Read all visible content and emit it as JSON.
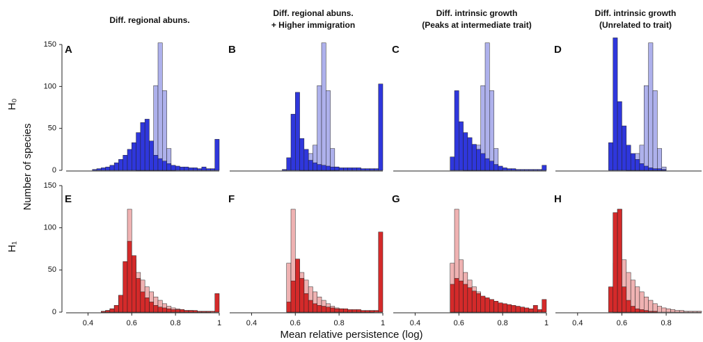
{
  "y_label": "Number of species",
  "x_label": "Mean relative persistence (log)",
  "row_labels": [
    "H₀",
    "H₁"
  ],
  "chart_data": [
    {
      "type": "histogram",
      "panel": "A",
      "title_lines": [
        "Diff. regional abuns."
      ],
      "xlim": [
        0.3,
        1.0
      ],
      "ylim": [
        0,
        160
      ],
      "yticks": [
        0,
        50,
        100,
        150
      ],
      "bins": [
        0.4,
        0.42,
        0.44,
        0.46,
        0.48,
        0.5,
        0.52,
        0.54,
        0.56,
        0.58,
        0.6,
        0.62,
        0.64,
        0.66,
        0.68,
        0.7,
        0.72,
        0.74,
        0.76,
        0.78,
        0.8,
        0.82,
        0.84,
        0.86,
        0.88,
        0.9,
        0.92,
        0.94,
        0.96,
        0.98,
        1.0
      ],
      "series": [
        {
          "color": "#aeb1ec",
          "values": [
            0,
            0,
            0,
            0,
            0,
            0,
            0,
            0,
            0,
            0,
            0,
            2,
            5,
            20,
            30,
            101,
            152,
            95,
            26,
            4,
            0,
            0,
            0,
            0,
            0,
            0,
            0,
            0,
            0,
            0
          ]
        },
        {
          "color": "#2f37dc",
          "values": [
            0,
            1,
            2,
            3,
            4,
            6,
            9,
            13,
            18,
            25,
            33,
            45,
            57,
            61,
            35,
            18,
            14,
            11,
            8,
            6,
            5,
            4,
            4,
            3,
            3,
            2,
            4,
            2,
            2,
            37
          ]
        }
      ]
    },
    {
      "type": "histogram",
      "panel": "B",
      "title_lines": [
        "Diff. regional abuns.",
        "+ Higher immigration"
      ],
      "xlim": [
        0.3,
        1.0
      ],
      "ylim": [
        0,
        160
      ],
      "bins": [
        0.4,
        0.42,
        0.44,
        0.46,
        0.48,
        0.5,
        0.52,
        0.54,
        0.56,
        0.58,
        0.6,
        0.62,
        0.64,
        0.66,
        0.68,
        0.7,
        0.72,
        0.74,
        0.76,
        0.78,
        0.8,
        0.82,
        0.84,
        0.86,
        0.88,
        0.9,
        0.92,
        0.94,
        0.96,
        0.98,
        1.0
      ],
      "series": [
        {
          "color": "#aeb1ec",
          "values": [
            0,
            0,
            0,
            0,
            0,
            0,
            0,
            0,
            0,
            0,
            0,
            2,
            5,
            20,
            30,
            101,
            152,
            95,
            26,
            4,
            0,
            0,
            0,
            0,
            0,
            0,
            0,
            0,
            0,
            0
          ]
        },
        {
          "color": "#2f37dc",
          "values": [
            0,
            0,
            0,
            0,
            0,
            0,
            0,
            1,
            15,
            67,
            93,
            38,
            25,
            12,
            9,
            7,
            6,
            5,
            4,
            4,
            3,
            3,
            3,
            3,
            3,
            2,
            2,
            2,
            2,
            103
          ]
        }
      ]
    },
    {
      "type": "histogram",
      "panel": "C",
      "title_lines": [
        "Diff. intrinsic growth",
        "(Peaks at intermediate trait)"
      ],
      "xlim": [
        0.3,
        1.0
      ],
      "ylim": [
        0,
        160
      ],
      "bins": [
        0.4,
        0.42,
        0.44,
        0.46,
        0.48,
        0.5,
        0.52,
        0.54,
        0.56,
        0.58,
        0.6,
        0.62,
        0.64,
        0.66,
        0.68,
        0.7,
        0.72,
        0.74,
        0.76,
        0.78,
        0.8,
        0.82,
        0.84,
        0.86,
        0.88,
        0.9,
        0.92,
        0.94,
        0.96,
        0.98,
        1.0
      ],
      "series": [
        {
          "color": "#aeb1ec",
          "values": [
            0,
            0,
            0,
            0,
            0,
            0,
            0,
            0,
            0,
            0,
            0,
            2,
            5,
            20,
            30,
            101,
            152,
            95,
            26,
            4,
            0,
            0,
            0,
            0,
            0,
            0,
            0,
            0,
            0,
            0
          ]
        },
        {
          "color": "#2f37dc",
          "values": [
            0,
            0,
            0,
            0,
            0,
            0,
            0,
            0,
            16,
            95,
            58,
            45,
            39,
            31,
            25,
            20,
            14,
            11,
            7,
            5,
            3,
            2,
            2,
            1,
            1,
            1,
            1,
            1,
            1,
            6
          ]
        }
      ]
    },
    {
      "type": "histogram",
      "panel": "D",
      "title_lines": [
        "Diff. intrinsic growth",
        "(Unrelated to trait)"
      ],
      "xlim": [
        0.3,
        0.96
      ],
      "ylim": [
        0,
        160
      ],
      "bins": [
        0.4,
        0.42,
        0.44,
        0.46,
        0.48,
        0.5,
        0.52,
        0.54,
        0.56,
        0.58,
        0.6,
        0.62,
        0.64,
        0.66,
        0.68,
        0.7,
        0.72,
        0.74,
        0.76,
        0.78,
        0.8,
        0.82,
        0.84,
        0.86,
        0.88,
        0.9,
        0.92,
        0.94,
        0.96
      ],
      "series": [
        {
          "color": "#aeb1ec",
          "values": [
            0,
            0,
            0,
            0,
            0,
            0,
            0,
            0,
            0,
            0,
            0,
            2,
            5,
            20,
            30,
            101,
            152,
            95,
            26,
            4,
            0,
            0,
            0,
            0,
            0,
            0,
            0,
            0
          ]
        },
        {
          "color": "#2f37dc",
          "values": [
            0,
            0,
            0,
            0,
            0,
            0,
            0,
            33,
            158,
            82,
            53,
            30,
            20,
            13,
            8,
            5,
            3,
            2,
            2,
            1,
            0,
            0,
            0,
            0,
            0,
            0,
            0,
            0
          ]
        }
      ]
    },
    {
      "type": "histogram",
      "panel": "E",
      "xlim": [
        0.3,
        1.0
      ],
      "ylim": [
        0,
        150
      ],
      "yticks": [
        0,
        50,
        100,
        150
      ],
      "xticks": [
        0.4,
        0.6,
        0.8,
        1
      ],
      "bins": [
        0.4,
        0.42,
        0.44,
        0.46,
        0.48,
        0.5,
        0.52,
        0.54,
        0.56,
        0.58,
        0.6,
        0.62,
        0.64,
        0.66,
        0.68,
        0.7,
        0.72,
        0.74,
        0.76,
        0.78,
        0.8,
        0.82,
        0.84,
        0.86,
        0.88,
        0.9,
        0.92,
        0.94,
        0.96,
        0.98,
        1.0
      ],
      "series": [
        {
          "color": "#efb2b2",
          "values": [
            0,
            0,
            0,
            1,
            2,
            4,
            8,
            20,
            58,
            122,
            62,
            47,
            38,
            30,
            24,
            18,
            14,
            10,
            7,
            5,
            4,
            3,
            2,
            2,
            1,
            1,
            1,
            1,
            0,
            0
          ]
        },
        {
          "color": "#d42a2a",
          "values": [
            0,
            0,
            0,
            1,
            2,
            4,
            8,
            20,
            60,
            84,
            67,
            40,
            24,
            17,
            12,
            8,
            6,
            5,
            4,
            3,
            3,
            3,
            2,
            2,
            2,
            1,
            1,
            1,
            1,
            22
          ]
        }
      ]
    },
    {
      "type": "histogram",
      "panel": "F",
      "xlim": [
        0.3,
        1.0
      ],
      "ylim": [
        0,
        150
      ],
      "xticks": [
        0.4,
        0.6,
        0.8,
        1
      ],
      "bins": [
        0.4,
        0.42,
        0.44,
        0.46,
        0.48,
        0.5,
        0.52,
        0.54,
        0.56,
        0.58,
        0.6,
        0.62,
        0.64,
        0.66,
        0.68,
        0.7,
        0.72,
        0.74,
        0.76,
        0.78,
        0.8,
        0.82,
        0.84,
        0.86,
        0.88,
        0.9,
        0.92,
        0.94,
        0.96,
        0.98,
        1.0
      ],
      "series": [
        {
          "color": "#efb2b2",
          "values": [
            0,
            0,
            0,
            0,
            0,
            0,
            0,
            0,
            58,
            122,
            62,
            47,
            38,
            30,
            24,
            18,
            14,
            10,
            7,
            5,
            4,
            3,
            2,
            2,
            1,
            1,
            1,
            1,
            0,
            0
          ]
        },
        {
          "color": "#d42a2a",
          "values": [
            0,
            0,
            0,
            0,
            0,
            0,
            0,
            0,
            12,
            37,
            63,
            40,
            22,
            14,
            10,
            8,
            7,
            6,
            5,
            4,
            4,
            4,
            3,
            3,
            3,
            2,
            2,
            2,
            2,
            95
          ]
        }
      ]
    },
    {
      "type": "histogram",
      "panel": "G",
      "xlim": [
        0.3,
        1.0
      ],
      "ylim": [
        0,
        150
      ],
      "xticks": [
        0.4,
        0.6,
        0.8,
        1
      ],
      "bins": [
        0.4,
        0.42,
        0.44,
        0.46,
        0.48,
        0.5,
        0.52,
        0.54,
        0.56,
        0.58,
        0.6,
        0.62,
        0.64,
        0.66,
        0.68,
        0.7,
        0.72,
        0.74,
        0.76,
        0.78,
        0.8,
        0.82,
        0.84,
        0.86,
        0.88,
        0.9,
        0.92,
        0.94,
        0.96,
        0.98,
        1.0
      ],
      "series": [
        {
          "color": "#efb2b2",
          "values": [
            0,
            0,
            0,
            0,
            0,
            0,
            0,
            0,
            58,
            122,
            62,
            47,
            38,
            30,
            24,
            18,
            14,
            10,
            7,
            5,
            4,
            3,
            2,
            2,
            1,
            1,
            1,
            1,
            0,
            0
          ]
        },
        {
          "color": "#d42a2a",
          "values": [
            0,
            0,
            0,
            0,
            0,
            0,
            0,
            0,
            33,
            40,
            37,
            33,
            29,
            25,
            22,
            19,
            17,
            15,
            13,
            11,
            10,
            9,
            8,
            7,
            6,
            5,
            4,
            8,
            3,
            15
          ]
        }
      ]
    },
    {
      "type": "histogram",
      "panel": "H",
      "xlim": [
        0.3,
        0.96
      ],
      "ylim": [
        0,
        150
      ],
      "xticks": [
        0.4,
        0.6,
        0.8
      ],
      "bins": [
        0.4,
        0.42,
        0.44,
        0.46,
        0.48,
        0.5,
        0.52,
        0.54,
        0.56,
        0.58,
        0.6,
        0.62,
        0.64,
        0.66,
        0.68,
        0.7,
        0.72,
        0.74,
        0.76,
        0.78,
        0.8,
        0.82,
        0.84,
        0.86,
        0.88,
        0.9,
        0.92,
        0.94,
        0.96
      ],
      "series": [
        {
          "color": "#efb2b2",
          "values": [
            0,
            0,
            0,
            0,
            0,
            0,
            0,
            0,
            58,
            122,
            62,
            47,
            38,
            30,
            24,
            18,
            14,
            10,
            7,
            5,
            4,
            3,
            2,
            2,
            1,
            1,
            1,
            1
          ]
        },
        {
          "color": "#d42a2a",
          "values": [
            0,
            0,
            0,
            0,
            0,
            0,
            0,
            30,
            118,
            122,
            30,
            14,
            7,
            4,
            3,
            2,
            1,
            1,
            0,
            0,
            0,
            0,
            0,
            0,
            0,
            0,
            0,
            0
          ]
        }
      ]
    }
  ]
}
